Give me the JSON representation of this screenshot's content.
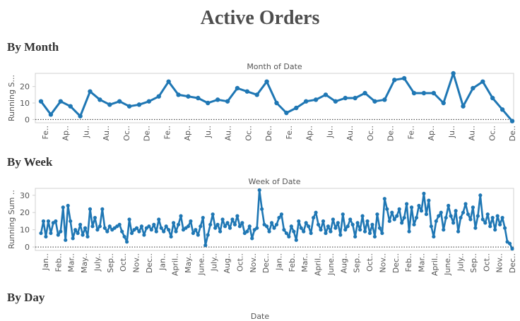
{
  "dashboard": {
    "title": "Active Orders",
    "sections": [
      "By Month",
      "By Week",
      "By Day"
    ],
    "day_column_label": "Date"
  },
  "colors": {
    "line": "#1f77b4",
    "axis": "#d0d0d0",
    "zero": "#333333",
    "text": "#555555"
  },
  "chart_data": [
    {
      "type": "line",
      "title": "Month of Date",
      "ylabel": "Running S...",
      "ylim": [
        -2,
        28
      ],
      "yticks": [
        0,
        10,
        20
      ],
      "xticks": [
        "Fe..",
        "Ap..",
        "Ju..",
        "Au..",
        "Oc..",
        "De..",
        "Fe..",
        "Ap..",
        "Ju..",
        "Au..",
        "Oc..",
        "De..",
        "Fe..",
        "Ap..",
        "Ju..",
        "Au..",
        "Oc..",
        "De..",
        "Fe..",
        "Ap..",
        "Ju..",
        "Au..",
        "Oc..",
        "De.."
      ],
      "values": [
        11,
        3,
        11,
        8,
        2,
        17,
        12,
        9,
        11,
        8,
        9,
        11,
        14,
        23,
        15,
        14,
        13,
        10,
        12,
        11,
        19,
        17,
        15,
        23,
        10,
        4,
        7,
        11,
        12,
        15,
        11,
        13,
        13,
        16,
        11,
        12,
        24,
        25,
        16,
        16,
        16,
        10,
        28,
        8,
        19,
        23,
        13,
        6,
        -1
      ]
    },
    {
      "type": "line",
      "title": "Week of Date",
      "ylabel": "Running Sum ..",
      "ylim": [
        -2,
        34
      ],
      "yticks": [
        0,
        10,
        20,
        30
      ],
      "xticks": [
        "Jan..",
        "Feb..",
        "Mar..",
        "May..",
        "July..",
        "Sep..",
        "Oct..",
        "Nov..",
        "Dec..",
        "Jan..",
        "April..",
        "May..",
        "June..",
        "July..",
        "Aug..",
        "Oct..",
        "Nov..",
        "Dec..",
        "Jan..",
        "Feb..",
        "Mar..",
        "April..",
        "June..",
        "Aug..",
        "Sep..",
        "Oct..",
        "Nov..",
        "Dec..",
        "Feb..",
        "Mar..",
        "April..",
        "June..",
        "July..",
        "Sep..",
        "Oct..",
        "Nov..",
        "Dec.."
      ],
      "values": [
        8,
        15,
        6,
        15,
        8,
        14,
        15,
        7,
        9,
        23,
        4,
        24,
        15,
        5,
        10,
        8,
        13,
        7,
        11,
        6,
        22,
        12,
        17,
        10,
        12,
        22,
        11,
        9,
        12,
        10,
        11,
        12,
        13,
        9,
        6,
        3,
        16,
        8,
        10,
        11,
        9,
        12,
        7,
        11,
        12,
        10,
        13,
        9,
        16,
        11,
        9,
        12,
        10,
        6,
        14,
        9,
        13,
        18,
        10,
        11,
        12,
        15,
        8,
        10,
        7,
        12,
        17,
        1,
        7,
        13,
        19,
        11,
        13,
        9,
        16,
        12,
        14,
        11,
        16,
        13,
        18,
        12,
        14,
        8,
        9,
        12,
        5,
        10,
        11,
        33,
        22,
        13,
        12,
        9,
        14,
        11,
        13,
        17,
        19,
        10,
        8,
        6,
        12,
        9,
        4,
        15,
        11,
        9,
        14,
        12,
        8,
        17,
        20,
        13,
        10,
        15,
        8,
        12,
        9,
        16,
        11,
        14,
        7,
        19,
        10,
        12,
        16,
        13,
        6,
        14,
        10,
        18,
        9,
        15,
        8,
        13,
        6,
        19,
        11,
        8,
        28,
        22,
        15,
        20,
        16,
        18,
        22,
        14,
        17,
        25,
        9,
        23,
        13,
        17,
        24,
        21,
        31,
        19,
        27,
        12,
        6,
        15,
        18,
        20,
        10,
        17,
        24,
        18,
        14,
        21,
        9,
        17,
        20,
        25,
        19,
        16,
        23,
        11,
        18,
        30,
        16,
        14,
        19,
        12,
        17,
        10,
        18,
        13,
        17,
        11,
        3,
        2,
        -1
      ]
    }
  ]
}
